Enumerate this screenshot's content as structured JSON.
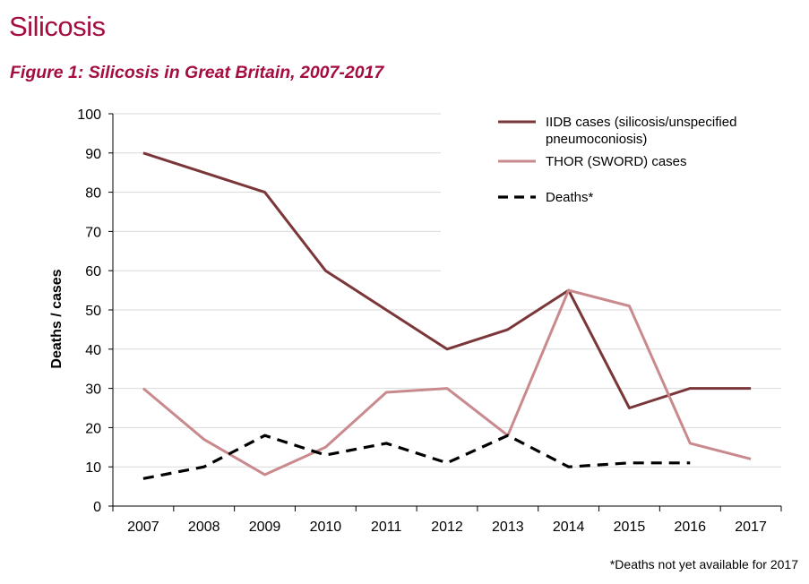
{
  "page": {
    "title": "Silicosis",
    "figure_title": "Figure 1: Silicosis in Great Britain, 2007-2017",
    "footnote": "*Deaths not yet available for 2017"
  },
  "colors": {
    "accent": "#a50d3e",
    "iidb": "#7a3638",
    "thor": "#c98a8e",
    "deaths": "#000000",
    "grid": "#d9d9d9"
  },
  "chart_data": {
    "type": "line",
    "title": "Figure 1: Silicosis in Great Britain, 2007-2017",
    "xlabel": "",
    "ylabel": "Deaths / cases",
    "ylim": [
      0,
      100
    ],
    "yticks": [
      0,
      10,
      20,
      30,
      40,
      50,
      60,
      70,
      80,
      90,
      100
    ],
    "grid": true,
    "legend_position": "top-right",
    "categories": [
      "2007",
      "2008",
      "2009",
      "2010",
      "2011",
      "2012",
      "2013",
      "2014",
      "2015",
      "2016",
      "2017"
    ],
    "series": [
      {
        "name": "IIDB cases (silicosis/unspecified pneumoconiosis)",
        "legend_lines": [
          "IIDB cases (silicosis/unspecified",
          "pneumoconiosis)"
        ],
        "color": "#7a3638",
        "style": "solid",
        "values": [
          90,
          85,
          80,
          60,
          50,
          40,
          45,
          55,
          25,
          30,
          30
        ]
      },
      {
        "name": "THOR (SWORD) cases",
        "legend_lines": [
          "THOR (SWORD) cases"
        ],
        "color": "#c98a8e",
        "style": "solid",
        "values": [
          30,
          17,
          8,
          15,
          29,
          30,
          18,
          55,
          51,
          16,
          12
        ]
      },
      {
        "name": "Deaths*",
        "legend_lines": [
          "Deaths*"
        ],
        "color": "#000000",
        "style": "dashed",
        "values": [
          7,
          10,
          18,
          13,
          16,
          11,
          18,
          10,
          11,
          11,
          null
        ]
      }
    ]
  }
}
